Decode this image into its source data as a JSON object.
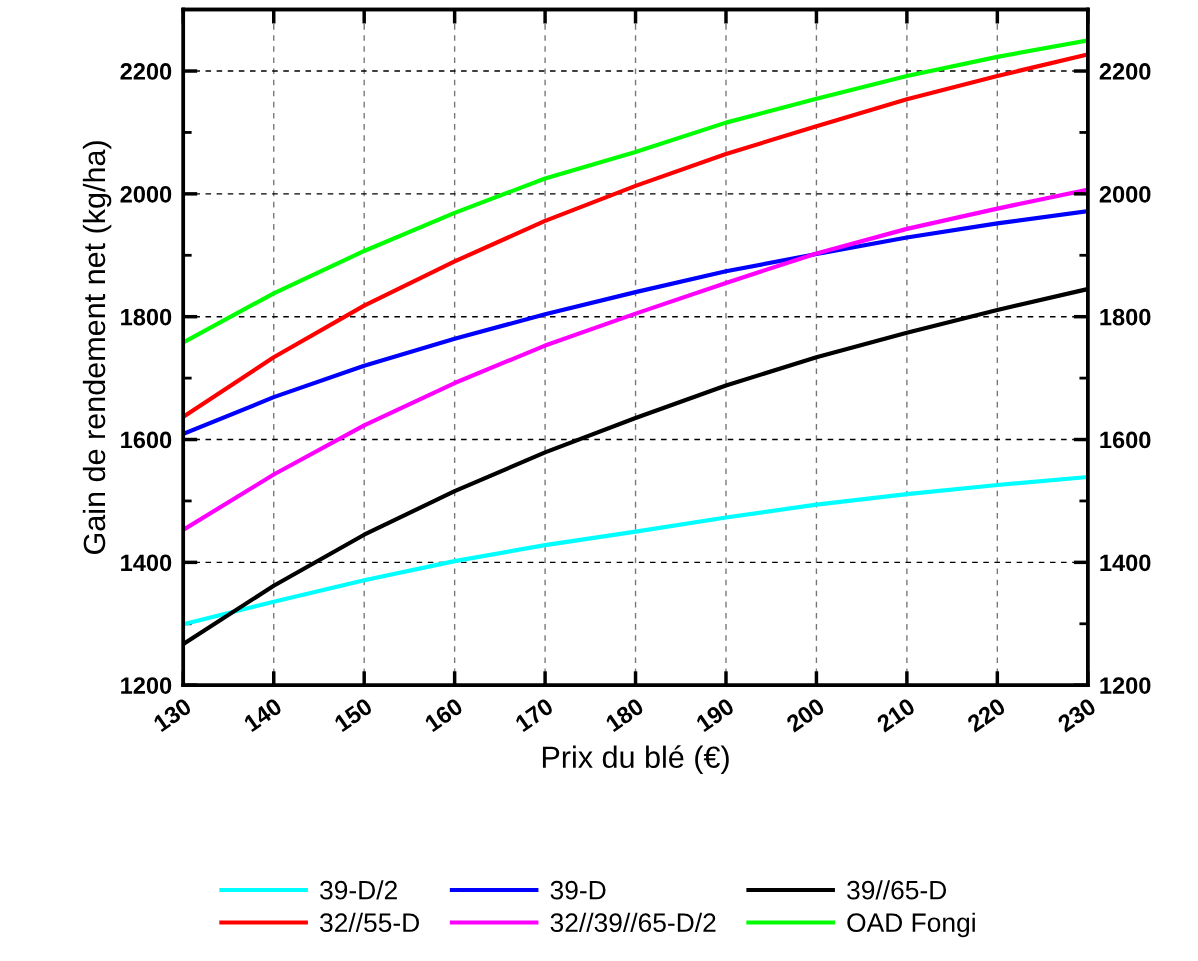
{
  "chart_data": {
    "type": "line",
    "xlabel": "Prix du blé (€)",
    "ylabel": "Gain de rendement net (kg/ha)",
    "x": [
      130,
      140,
      150,
      160,
      170,
      180,
      190,
      200,
      210,
      220,
      230
    ],
    "series": [
      {
        "name": "39-D/2",
        "color": "#00ffff",
        "values": [
          1299,
          1336,
          1371,
          1402,
          1428,
          1450,
          1473,
          1494,
          1511,
          1526,
          1539
        ]
      },
      {
        "name": "39-D",
        "color": "#0000ff",
        "values": [
          1609,
          1669,
          1720,
          1764,
          1804,
          1840,
          1874,
          1902,
          1929,
          1952,
          1972
        ]
      },
      {
        "name": "39//65-D",
        "color": "#000000",
        "values": [
          1267,
          1362,
          1445,
          1516,
          1579,
          1635,
          1688,
          1734,
          1774,
          1811,
          1845
        ]
      },
      {
        "name": "32//55-D",
        "color": "#ff0000",
        "values": [
          1637,
          1734,
          1818,
          1890,
          1956,
          2013,
          2065,
          2110,
          2154,
          2192,
          2227
        ]
      },
      {
        "name": "32//39//65-D/2",
        "color": "#ff00ff",
        "values": [
          1453,
          1543,
          1623,
          1692,
          1753,
          1805,
          1855,
          1903,
          1943,
          1976,
          2007
        ]
      },
      {
        "name": "OAD Fongi",
        "color": "#00ff00",
        "values": [
          1758,
          1838,
          1907,
          1969,
          2025,
          2068,
          2116,
          2155,
          2192,
          2223,
          2250
        ]
      }
    ],
    "xlim": [
      130,
      230
    ],
    "xticks": [
      130,
      140,
      150,
      160,
      170,
      180,
      190,
      200,
      210,
      220,
      230
    ],
    "ylim": [
      1200,
      2300
    ],
    "yticks": [
      1200,
      1400,
      1600,
      1800,
      2000,
      2200
    ],
    "y2lim": [
      1200,
      2300
    ],
    "y2ticks": [
      1200,
      1400,
      1600,
      1800,
      2000,
      2200
    ],
    "grid": true,
    "legend": "bottom",
    "marker": "none",
    "line_style": "solid"
  }
}
